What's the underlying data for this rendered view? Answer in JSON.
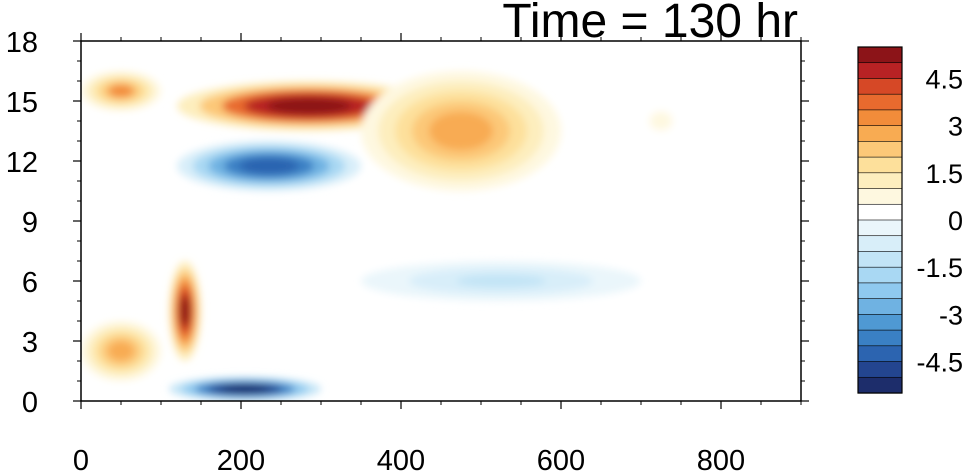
{
  "chart_data": {
    "type": "heatmap",
    "title": "Time = 130 hr",
    "xlabel": "",
    "ylabel": "",
    "xlim": [
      0,
      900
    ],
    "ylim": [
      0,
      18
    ],
    "x_ticks": [
      "0",
      "200",
      "400",
      "600",
      "800"
    ],
    "y_ticks": [
      "0",
      "3",
      "6",
      "9",
      "12",
      "15",
      "18"
    ],
    "x_tick_values": [
      0,
      200,
      400,
      600,
      800
    ],
    "y_tick_values": [
      0,
      3,
      6,
      9,
      12,
      15,
      18
    ],
    "colorbar": {
      "min": -5.5,
      "max": 5.5,
      "step": 0.5,
      "labels": [
        "4.5",
        "3",
        "1.5",
        "0",
        "-1.5",
        "-3",
        "-4.5"
      ],
      "label_values": [
        4.5,
        3,
        1.5,
        0,
        -1.5,
        -3,
        -4.5
      ],
      "colors": [
        "#1d2d6b",
        "#23458f",
        "#2c64b0",
        "#3a80c4",
        "#4f99d3",
        "#6fb2e2",
        "#8fc9ef",
        "#a9d8f3",
        "#c2e4f6",
        "#d8eef9",
        "#eaf6fb",
        "#ffffff",
        "#fef8e0",
        "#fdeebe",
        "#fde09b",
        "#fcc878",
        "#f8ab52",
        "#f28c3a",
        "#e86a2e",
        "#d64826",
        "#b82224",
        "#8c1418"
      ]
    },
    "features": [
      {
        "name": "upper positive tongue",
        "x_range": [
          120,
          450
        ],
        "y_range": [
          13.5,
          16
        ],
        "peak_value": 6
      },
      {
        "name": "upper negative band",
        "x_range": [
          120,
          350
        ],
        "y_range": [
          10.5,
          13
        ],
        "peak_value": -4.5
      },
      {
        "name": "lower positive streak",
        "x_range": [
          110,
          150
        ],
        "y_range": [
          2,
          7
        ],
        "peak_value": 5
      },
      {
        "name": "surface negative band",
        "x_range": [
          110,
          300
        ],
        "y_range": [
          0,
          1.2
        ],
        "peak_value": -6
      },
      {
        "name": "broad positive anomaly",
        "x_range": [
          350,
          600
        ],
        "y_range": [
          10.5,
          16.5
        ],
        "peak_value": 2.5
      },
      {
        "name": "far-field positive patch",
        "x_range": [
          680,
          770
        ],
        "y_range": [
          12.5,
          15.5
        ],
        "peak_value": 0.6
      },
      {
        "name": "mid-level negative band",
        "x_range": [
          350,
          700
        ],
        "y_range": [
          5,
          7
        ],
        "peak_value": -1.2
      },
      {
        "name": "left boundary positive cell",
        "x_range": [
          0,
          100
        ],
        "y_range": [
          14.5,
          16.5
        ],
        "peak_value": 3
      },
      {
        "name": "left boundary low-level positive",
        "x_range": [
          0,
          100
        ],
        "y_range": [
          1,
          4
        ],
        "peak_value": 2.5
      }
    ]
  }
}
